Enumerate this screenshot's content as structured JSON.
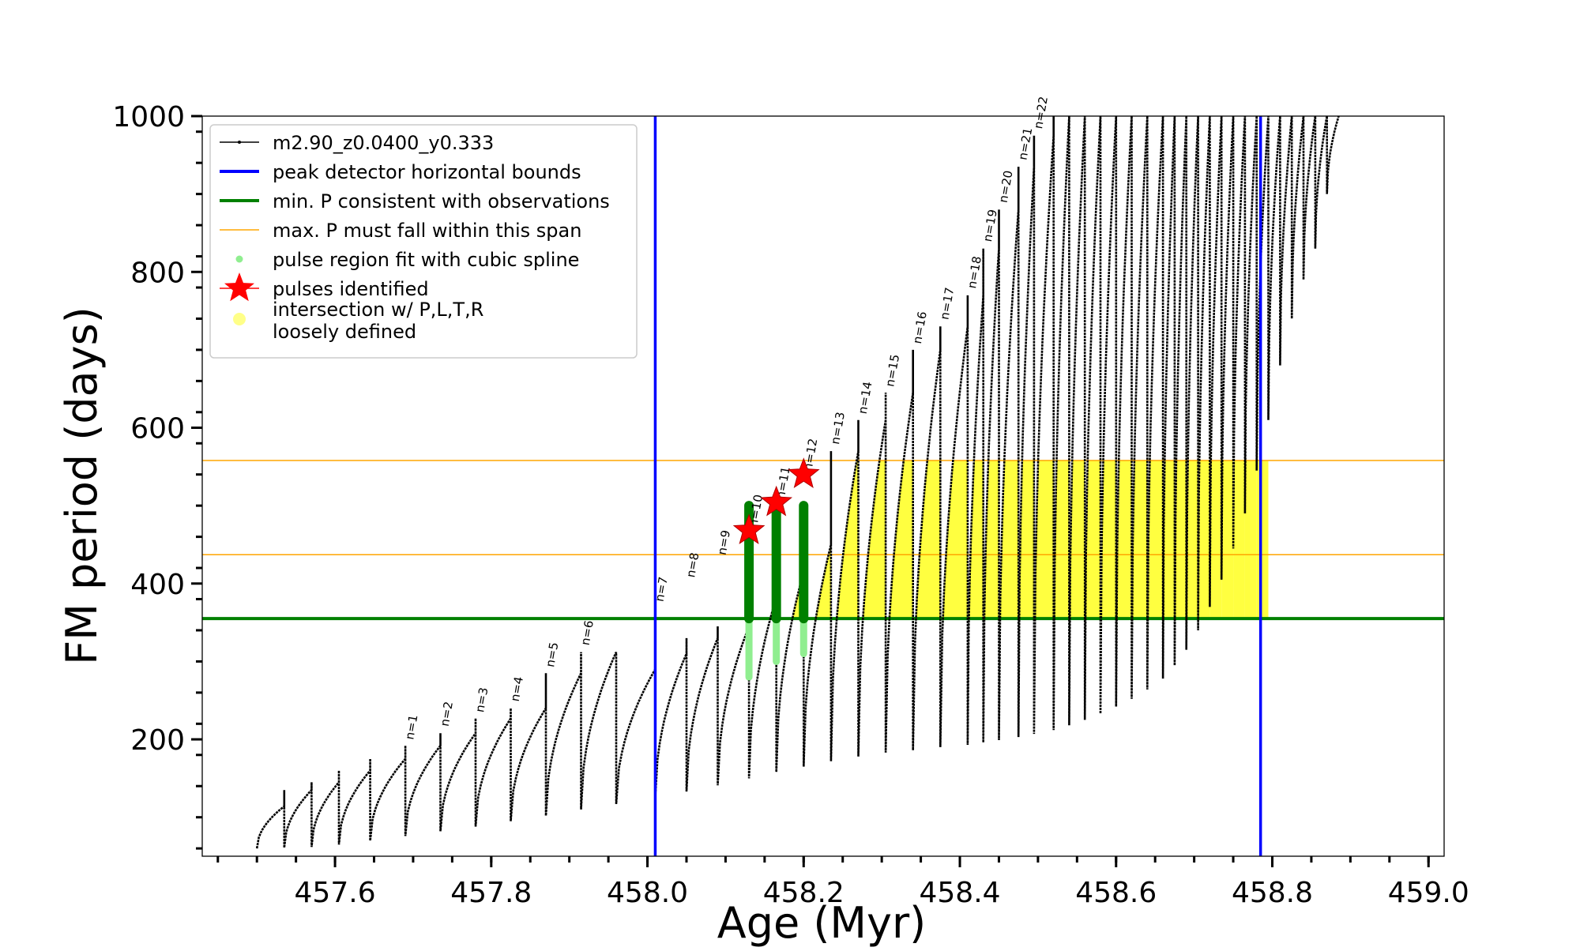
{
  "chart_data": {
    "type": "line",
    "title": "",
    "xlabel": "Age (Myr)",
    "ylabel": "FM period (days)",
    "xlim": [
      457.43,
      459.02
    ],
    "ylim": [
      50,
      1000
    ],
    "xticks": [
      457.6,
      457.8,
      458.0,
      458.2,
      458.4,
      458.6,
      458.8,
      459.0
    ],
    "xtick_labels": [
      "457.6",
      "457.8",
      "458.0",
      "458.2",
      "458.4",
      "458.6",
      "458.8",
      "459.0"
    ],
    "yticks": [
      200,
      400,
      600,
      800,
      1000
    ],
    "ytick_labels": [
      "200",
      "400",
      "600",
      "800",
      "1000"
    ],
    "grid": false,
    "legend_position": "top-left",
    "colors": {
      "track": "#000000",
      "bounds": "#0000ff",
      "min_p": "#008000",
      "max_p": "#ffa500",
      "spline": "#90ee90",
      "pulses": "#ff0000",
      "loose": "#ffff00"
    },
    "legend": [
      {
        "label": "m2.90_z0.0400_y0.333",
        "kind": "line-dot",
        "color": "#000000"
      },
      {
        "label": "peak detector horizontal bounds",
        "kind": "line",
        "color": "#0000ff"
      },
      {
        "label": "min. P consistent with observations",
        "kind": "line",
        "color": "#008000"
      },
      {
        "label": "max. P must fall within this span",
        "kind": "thin-line",
        "color": "#ffa500"
      },
      {
        "label": "pulse region fit with cubic spline",
        "kind": "dot",
        "color": "#90ee90"
      },
      {
        "label": "pulses identified",
        "kind": "star",
        "color": "#ff0000"
      },
      {
        "label": "intersection w/ P,L,T,R",
        "label2": "loosely defined",
        "kind": "circle",
        "color": "#ffff88"
      }
    ],
    "vlines": [
      {
        "x": 458.01,
        "color": "#0000ff"
      },
      {
        "x": 458.785,
        "color": "#0000ff"
      }
    ],
    "hlines": [
      {
        "y": 355,
        "color": "#008000",
        "width": 4
      },
      {
        "y": 437,
        "color": "#ffa500",
        "width": 1.5
      },
      {
        "y": 558,
        "color": "#ffa500",
        "width": 1.5
      }
    ],
    "series": [
      {
        "name": "m2.90_z0.0400_y0.333",
        "note": "pulses: [start age, max period, min period after drop]",
        "pulses": [
          [
            457.5,
            114,
            60
          ],
          [
            457.535,
            135,
            61
          ],
          [
            457.57,
            145,
            62
          ],
          [
            457.605,
            160,
            65
          ],
          [
            457.645,
            175,
            70
          ],
          [
            457.69,
            192,
            76
          ],
          [
            457.735,
            208,
            82
          ],
          [
            457.78,
            227,
            88
          ],
          [
            457.825,
            240,
            95
          ],
          [
            457.87,
            285,
            102
          ],
          [
            457.915,
            312,
            110
          ],
          [
            457.96,
            290,
            117
          ],
          [
            458.01,
            310,
            125
          ],
          [
            458.05,
            330,
            133
          ],
          [
            458.09,
            345,
            141
          ],
          [
            458.13,
            382,
            150
          ],
          [
            458.165,
            415,
            158
          ],
          [
            458.2,
            450,
            165
          ],
          [
            458.235,
            570,
            172
          ],
          [
            458.27,
            610,
            178
          ],
          [
            458.305,
            645,
            183
          ],
          [
            458.34,
            700,
            186
          ],
          [
            458.375,
            730,
            190
          ],
          [
            458.41,
            770,
            193
          ],
          [
            458.43,
            830,
            196
          ],
          [
            458.45,
            880,
            199
          ],
          [
            458.475,
            935,
            203
          ],
          [
            458.495,
            975,
            207
          ],
          [
            458.52,
            1000,
            212
          ],
          [
            458.54,
            1000,
            218
          ],
          [
            458.56,
            1000,
            225
          ],
          [
            458.58,
            1000,
            233
          ],
          [
            458.6,
            1000,
            242
          ],
          [
            458.62,
            1000,
            252
          ],
          [
            458.64,
            1000,
            264
          ],
          [
            458.66,
            1000,
            278
          ],
          [
            458.675,
            1000,
            295
          ],
          [
            458.69,
            1000,
            315
          ],
          [
            458.705,
            1000,
            340
          ],
          [
            458.72,
            1000,
            370
          ],
          [
            458.735,
            1000,
            405
          ],
          [
            458.75,
            1000,
            445
          ],
          [
            458.765,
            1000,
            490
          ],
          [
            458.78,
            1000,
            545
          ],
          [
            458.795,
            1000,
            610
          ],
          [
            458.81,
            1000,
            680
          ],
          [
            458.825,
            1000,
            740
          ],
          [
            458.84,
            1000,
            790
          ],
          [
            458.855,
            1000,
            830
          ],
          [
            458.87,
            1000,
            900
          ]
        ]
      }
    ],
    "pulse_labels": [
      {
        "text": "n=1",
        "x": 457.69,
        "y": 195
      },
      {
        "text": "n=2",
        "x": 457.735,
        "y": 212
      },
      {
        "text": "n=3",
        "x": 457.78,
        "y": 230
      },
      {
        "text": "n=4",
        "x": 457.825,
        "y": 244
      },
      {
        "text": "n=5",
        "x": 457.87,
        "y": 288
      },
      {
        "text": "n=6",
        "x": 457.915,
        "y": 316
      },
      {
        "text": "n=7",
        "x": 458.01,
        "y": 372
      },
      {
        "text": "n=8",
        "x": 458.05,
        "y": 403
      },
      {
        "text": "n=9",
        "x": 458.09,
        "y": 432
      },
      {
        "text": "n=10",
        "x": 458.13,
        "y": 468
      },
      {
        "text": "n=11",
        "x": 458.165,
        "y": 504
      },
      {
        "text": "n=12",
        "x": 458.2,
        "y": 540
      },
      {
        "text": "n=13",
        "x": 458.235,
        "y": 574
      },
      {
        "text": "n=14",
        "x": 458.27,
        "y": 613
      },
      {
        "text": "n=15",
        "x": 458.305,
        "y": 648
      },
      {
        "text": "n=16",
        "x": 458.34,
        "y": 703
      },
      {
        "text": "n=17",
        "x": 458.375,
        "y": 734
      },
      {
        "text": "n=18",
        "x": 458.41,
        "y": 774
      },
      {
        "text": "n=19",
        "x": 458.43,
        "y": 834
      },
      {
        "text": "n=20",
        "x": 458.45,
        "y": 884
      },
      {
        "text": "n=21",
        "x": 458.475,
        "y": 939
      },
      {
        "text": "n=22",
        "x": 458.495,
        "y": 979
      }
    ],
    "pulses_identified": [
      {
        "x": 458.13,
        "y": 468
      },
      {
        "x": 458.165,
        "y": 504
      },
      {
        "x": 458.2,
        "y": 540
      }
    ],
    "spline_regions": [
      {
        "x": 458.13,
        "green_from": 355,
        "green_to": 500,
        "light_from": 280,
        "light_to": 355
      },
      {
        "x": 458.165,
        "green_from": 355,
        "green_to": 500,
        "light_from": 300,
        "light_to": 355
      },
      {
        "x": 458.2,
        "green_from": 355,
        "green_to": 500,
        "light_from": 310,
        "light_to": 355
      }
    ]
  }
}
